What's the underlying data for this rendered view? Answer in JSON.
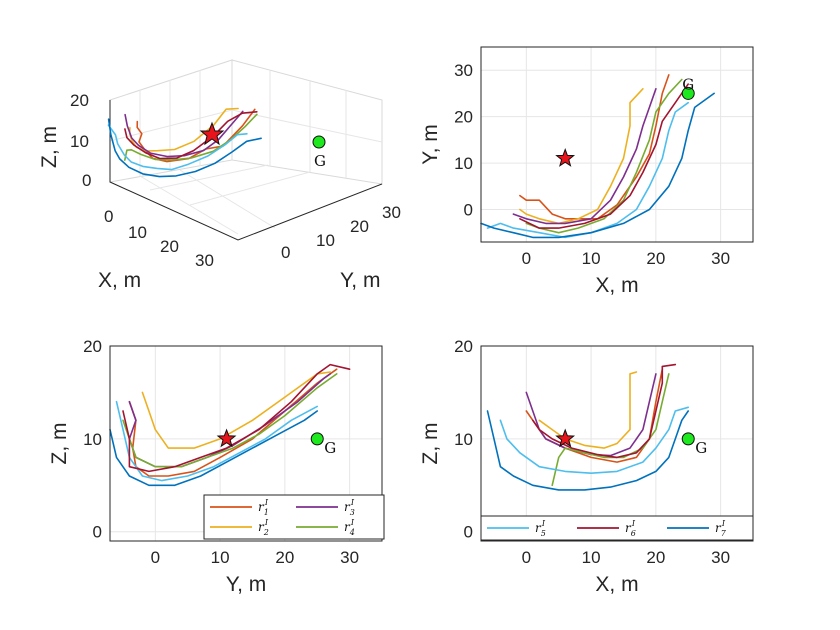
{
  "chart_data": [
    {
      "type": "line3d",
      "panel": "top-left",
      "xlabel": "X, m",
      "ylabel": "Y, m",
      "zlabel": "Z, m",
      "xticks": [
        "0",
        "10",
        "20",
        "30"
      ],
      "yticks": [
        "0",
        "10",
        "20",
        "30"
      ],
      "zticks": [
        "0",
        "10",
        "20"
      ],
      "grid": true,
      "markers": [
        {
          "label": "",
          "shape": "star",
          "color": "#e8141c"
        },
        {
          "label": "G",
          "shape": "circle",
          "color": "#1ee81e"
        }
      ]
    },
    {
      "type": "line",
      "panel": "top-right",
      "xlabel": "X, m",
      "ylabel": "Y, m",
      "xlim": [
        -7,
        35
      ],
      "ylim": [
        -7,
        35
      ],
      "xticks": [
        "0",
        "10",
        "20",
        "30"
      ],
      "yticks": [
        "0",
        "10",
        "20",
        "30"
      ],
      "grid": true,
      "markers": [
        {
          "label": "",
          "shape": "star",
          "color": "#e8141c",
          "x": 6,
          "y": 11
        },
        {
          "label": "G",
          "shape": "circle",
          "color": "#1ee81e",
          "x": 25,
          "y": 25
        }
      ]
    },
    {
      "type": "line",
      "panel": "bottom-left",
      "xlabel": "Y, m",
      "ylabel": "Z, m",
      "xlim": [
        -7,
        35
      ],
      "ylim": [
        -1,
        20
      ],
      "xticks": [
        "0",
        "10",
        "20",
        "30"
      ],
      "yticks": [
        "0",
        "10",
        "20"
      ],
      "grid": true,
      "legend_position": "bottom-right",
      "legend": [
        "r_1^I",
        "r_3^I",
        "r_2^I",
        "r_4^I"
      ],
      "markers": [
        {
          "label": "",
          "shape": "star",
          "color": "#e8141c",
          "x": 11,
          "y": 10
        },
        {
          "label": "G",
          "shape": "circle",
          "color": "#1ee81e",
          "x": 25,
          "y": 10
        }
      ]
    },
    {
      "type": "line",
      "panel": "bottom-right",
      "xlabel": "X, m",
      "ylabel": "Z, m",
      "xlim": [
        -7,
        35
      ],
      "ylim": [
        -1,
        20
      ],
      "xticks": [
        "0",
        "10",
        "20",
        "30"
      ],
      "yticks": [
        "0",
        "10",
        "20"
      ],
      "grid": true,
      "legend_position": "bottom",
      "legend": [
        "r_5^I",
        "r_6^I",
        "r_7^I"
      ],
      "markers": [
        {
          "label": "",
          "shape": "star",
          "color": "#e8141c",
          "x": 6,
          "y": 10
        },
        {
          "label": "G",
          "shape": "circle",
          "color": "#1ee81e",
          "x": 25,
          "y": 10
        }
      ]
    }
  ],
  "series": [
    {
      "name": "r_1^I",
      "sub": "1",
      "color": "#d95319",
      "xy": [
        [
          -1,
          3
        ],
        [
          0,
          2
        ],
        [
          2,
          2
        ],
        [
          4,
          -1
        ],
        [
          6,
          -2
        ],
        [
          8,
          -2
        ],
        [
          11,
          -2
        ],
        [
          14,
          1
        ],
        [
          17,
          7
        ],
        [
          19,
          12
        ],
        [
          20,
          18
        ],
        [
          21,
          25
        ],
        [
          22,
          29
        ]
      ],
      "yz": [
        [
          -4,
          14
        ],
        [
          -3,
          12
        ],
        [
          -3.5,
          9
        ],
        [
          -3,
          7
        ],
        [
          -1,
          6
        ],
        [
          2,
          6
        ],
        [
          6,
          6.5
        ],
        [
          10,
          8
        ],
        [
          15,
          10
        ],
        [
          20,
          13
        ],
        [
          25,
          16
        ],
        [
          28,
          17.5
        ]
      ],
      "xz": [
        [
          0,
          13
        ],
        [
          1,
          12
        ],
        [
          2,
          11
        ],
        [
          3,
          10
        ],
        [
          6,
          9
        ],
        [
          10,
          8
        ],
        [
          14,
          7.5
        ],
        [
          17,
          8
        ],
        [
          19,
          10
        ],
        [
          20,
          14
        ],
        [
          21,
          17.5
        ]
      ]
    },
    {
      "name": "r_2^I",
      "sub": "2",
      "color": "#edb120",
      "xy": [
        [
          -1,
          0
        ],
        [
          0,
          -1
        ],
        [
          2,
          -2
        ],
        [
          5,
          -3
        ],
        [
          8,
          -2
        ],
        [
          11,
          0
        ],
        [
          13,
          5
        ],
        [
          15,
          11
        ],
        [
          16,
          18
        ],
        [
          16,
          23
        ],
        [
          18,
          26
        ]
      ],
      "yz": [
        [
          -2,
          15
        ],
        [
          -1,
          13
        ],
        [
          0,
          11
        ],
        [
          2,
          9
        ],
        [
          6,
          9
        ],
        [
          10,
          10
        ],
        [
          15,
          12
        ],
        [
          20,
          14.5
        ],
        [
          25,
          17
        ],
        [
          27,
          17.2
        ]
      ],
      "xz": [
        [
          2,
          12
        ],
        [
          4,
          11
        ],
        [
          6,
          10
        ],
        [
          9,
          9.3
        ],
        [
          12,
          9
        ],
        [
          14,
          9.5
        ],
        [
          16,
          11
        ],
        [
          16,
          14
        ],
        [
          16,
          17
        ],
        [
          17,
          17.2
        ]
      ]
    },
    {
      "name": "r_3^I",
      "sub": "3",
      "color": "#7e2f8e",
      "xy": [
        [
          -2,
          -1
        ],
        [
          0,
          -2
        ],
        [
          3,
          -3
        ],
        [
          6,
          -3
        ],
        [
          10,
          -2
        ],
        [
          13,
          2
        ],
        [
          15,
          7
        ],
        [
          17,
          13
        ],
        [
          18,
          18
        ],
        [
          19,
          22
        ],
        [
          20,
          26
        ]
      ],
      "yz": [
        [
          -4,
          14
        ],
        [
          -3,
          12
        ],
        [
          -4,
          10
        ],
        [
          -3,
          8
        ],
        [
          0,
          7
        ],
        [
          4,
          7
        ],
        [
          8,
          8
        ],
        [
          12,
          9.3
        ],
        [
          17,
          11.5
        ],
        [
          22,
          14
        ],
        [
          26,
          16.5
        ],
        [
          27,
          17
        ]
      ],
      "xz": [
        [
          0,
          15
        ],
        [
          1,
          13
        ],
        [
          2,
          11
        ],
        [
          3,
          10
        ],
        [
          6,
          9
        ],
        [
          10,
          8.3
        ],
        [
          13,
          8.2
        ],
        [
          16,
          9
        ],
        [
          18,
          11
        ],
        [
          19,
          14
        ],
        [
          20,
          17
        ]
      ]
    },
    {
      "name": "r_4^I",
      "sub": "4",
      "color": "#77ac30",
      "xy": [
        [
          0,
          -3
        ],
        [
          2,
          -4
        ],
        [
          5,
          -5
        ],
        [
          8,
          -4
        ],
        [
          12,
          -2
        ],
        [
          15,
          2
        ],
        [
          17,
          8
        ],
        [
          19,
          15
        ],
        [
          20,
          21
        ],
        [
          22,
          25
        ],
        [
          24,
          28
        ]
      ],
      "yz": [
        [
          -5,
          12
        ],
        [
          -4,
          10
        ],
        [
          -3,
          8
        ],
        [
          0,
          7
        ],
        [
          4,
          7
        ],
        [
          8,
          8
        ],
        [
          12,
          9
        ],
        [
          16,
          10.5
        ],
        [
          20,
          12.5
        ],
        [
          25,
          15.5
        ],
        [
          28,
          17
        ]
      ],
      "xz": [
        [
          4,
          5
        ],
        [
          5,
          8
        ],
        [
          6,
          9
        ],
        [
          9,
          8.5
        ],
        [
          12,
          8
        ],
        [
          15,
          8
        ],
        [
          18,
          9
        ],
        [
          20,
          11
        ],
        [
          21,
          14
        ],
        [
          22,
          17
        ]
      ]
    },
    {
      "name": "r_5^I",
      "sub": "5",
      "color": "#4dbeee",
      "xy": [
        [
          -6,
          -4
        ],
        [
          -4,
          -3
        ],
        [
          -2,
          -4
        ],
        [
          2,
          -5
        ],
        [
          6,
          -6
        ],
        [
          10,
          -5
        ],
        [
          14,
          -3
        ],
        [
          17,
          0
        ],
        [
          19,
          5
        ],
        [
          21,
          11
        ],
        [
          22,
          17
        ],
        [
          23,
          21
        ],
        [
          25,
          23
        ]
      ],
      "yz": [
        [
          -6,
          14
        ],
        [
          -5,
          11
        ],
        [
          -4,
          8
        ],
        [
          -2,
          6
        ],
        [
          1,
          5.5
        ],
        [
          5,
          6
        ],
        [
          9,
          7
        ],
        [
          13,
          8.5
        ],
        [
          17,
          10
        ],
        [
          21,
          12
        ],
        [
          25,
          13.5
        ]
      ],
      "xz": [
        [
          -4,
          12
        ],
        [
          -3,
          10
        ],
        [
          -1,
          8.5
        ],
        [
          2,
          7
        ],
        [
          6,
          6.5
        ],
        [
          10,
          6.3
        ],
        [
          14,
          6.5
        ],
        [
          18,
          7.5
        ],
        [
          20,
          9
        ],
        [
          22,
          11
        ],
        [
          23,
          13
        ],
        [
          25,
          13.4
        ]
      ]
    },
    {
      "name": "r_6^I",
      "sub": "6",
      "color": "#a2142f",
      "xy": [
        [
          -1,
          -2
        ],
        [
          2,
          -4
        ],
        [
          5,
          -4
        ],
        [
          9,
          -3
        ],
        [
          13,
          -1
        ],
        [
          16,
          3
        ],
        [
          18,
          8
        ],
        [
          20,
          14
        ],
        [
          21,
          19
        ],
        [
          23,
          23
        ],
        [
          25,
          27
        ]
      ],
      "yz": [
        [
          -5,
          13
        ],
        [
          -4,
          10
        ],
        [
          -4,
          7
        ],
        [
          -1,
          6.5
        ],
        [
          3,
          7
        ],
        [
          7,
          8
        ],
        [
          11,
          9
        ],
        [
          16,
          11
        ],
        [
          21,
          14
        ],
        [
          25,
          17
        ],
        [
          27,
          18
        ],
        [
          30,
          17.5
        ]
      ],
      "xz": [
        [
          1,
          12
        ],
        [
          2,
          11
        ],
        [
          4,
          10
        ],
        [
          7,
          9
        ],
        [
          11,
          8.3
        ],
        [
          14,
          8
        ],
        [
          17,
          8.5
        ],
        [
          19,
          10
        ],
        [
          20,
          13
        ],
        [
          21,
          16
        ],
        [
          21,
          17.8
        ],
        [
          23,
          18
        ]
      ]
    },
    {
      "name": "r_7^I",
      "sub": "7",
      "color": "#0072bd",
      "xy": [
        [
          -7,
          -3
        ],
        [
          -5,
          -4
        ],
        [
          -2,
          -5
        ],
        [
          1,
          -6
        ],
        [
          5,
          -6
        ],
        [
          10,
          -5
        ],
        [
          15,
          -3
        ],
        [
          19,
          0
        ],
        [
          22,
          5
        ],
        [
          24,
          11
        ],
        [
          25,
          17
        ],
        [
          26,
          22
        ],
        [
          29,
          25
        ]
      ],
      "yz": [
        [
          -7,
          11
        ],
        [
          -6,
          8
        ],
        [
          -4,
          6
        ],
        [
          -1,
          5
        ],
        [
          3,
          5
        ],
        [
          7,
          6
        ],
        [
          11,
          7.5
        ],
        [
          15,
          9
        ],
        [
          19,
          10.5
        ],
        [
          23,
          12
        ],
        [
          25,
          13
        ]
      ],
      "xz": [
        [
          -6,
          13
        ],
        [
          -5,
          10
        ],
        [
          -4,
          7
        ],
        [
          -2,
          6
        ],
        [
          1,
          5
        ],
        [
          5,
          4.5
        ],
        [
          9,
          4.5
        ],
        [
          13,
          4.8
        ],
        [
          17,
          5.5
        ],
        [
          20,
          6.5
        ],
        [
          22,
          8
        ],
        [
          23,
          10
        ],
        [
          24,
          12
        ],
        [
          25,
          13
        ]
      ]
    }
  ]
}
